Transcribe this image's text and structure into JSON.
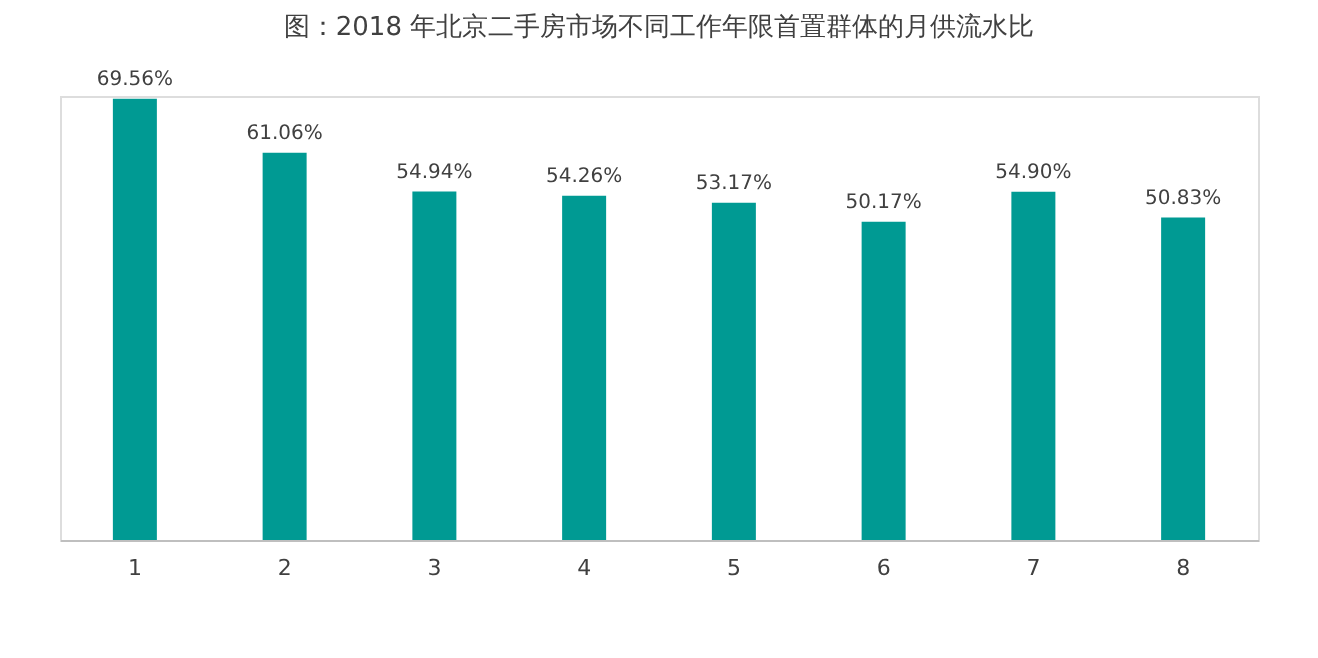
{
  "chart_data": {
    "type": "bar",
    "title": "图：2018 年北京二手房市场不同工作年限首置群体的月供流水比",
    "categories": [
      "1",
      "2",
      "3",
      "4",
      "5",
      "6",
      "7",
      "8"
    ],
    "values": [
      69.56,
      61.06,
      54.94,
      54.26,
      53.17,
      50.17,
      54.9,
      50.83
    ],
    "value_labels": [
      "69.56%",
      "61.06%",
      "54.94%",
      "54.26%",
      "53.17%",
      "50.17%",
      "54.90%",
      "50.83%"
    ],
    "color": "#009a93",
    "grid": false
  }
}
